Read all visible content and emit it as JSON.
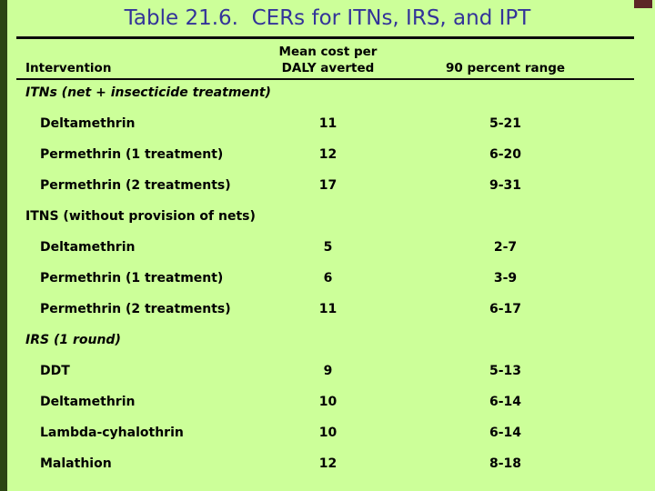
{
  "title": "Table 21.6.  CERs for ITNs, IRS, and IPT",
  "colors": {
    "background": "#ccff99",
    "title_text": "#333399",
    "body_text": "#000000",
    "rule": "#0a0a0a",
    "left_edge_bar": "#2c4514",
    "corner_accent": "#5c2626"
  },
  "header": {
    "col_intervention": "Intervention",
    "col_cost_line1": "Mean cost per",
    "col_cost_line2": "DALY averted",
    "col_range": "90 percent range"
  },
  "table": {
    "sections": [
      {
        "label": "ITNs (net + insecticide treatment)",
        "italic": true,
        "rows": [
          {
            "name": "Deltamethrin",
            "cost": "11",
            "range": "5-21"
          },
          {
            "name": "Permethrin (1 treatment)",
            "cost": "12",
            "range": "6-20"
          },
          {
            "name": "Permethrin (2 treatments)",
            "cost": "17",
            "range": "9-31"
          }
        ]
      },
      {
        "label": "ITNS (without provision of nets)",
        "italic": false,
        "rows": [
          {
            "name": "Deltamethrin",
            "cost": "5",
            "range": "2-7"
          },
          {
            "name": "Permethrin (1 treatment)",
            "cost": "6",
            "range": "3-9"
          },
          {
            "name": "Permethrin (2 treatments)",
            "cost": "11",
            "range": "6-17"
          }
        ]
      },
      {
        "label": "IRS (1 round)",
        "italic": true,
        "rows": [
          {
            "name": "DDT",
            "cost": "9",
            "range": "5-13"
          },
          {
            "name": "Deltamethrin",
            "cost": "10",
            "range": "6-14"
          },
          {
            "name": "Lambda-cyhalothrin",
            "cost": "10",
            "range": "6-14"
          },
          {
            "name": "Malathion",
            "cost": "12",
            "range": "8-18"
          }
        ]
      }
    ]
  }
}
